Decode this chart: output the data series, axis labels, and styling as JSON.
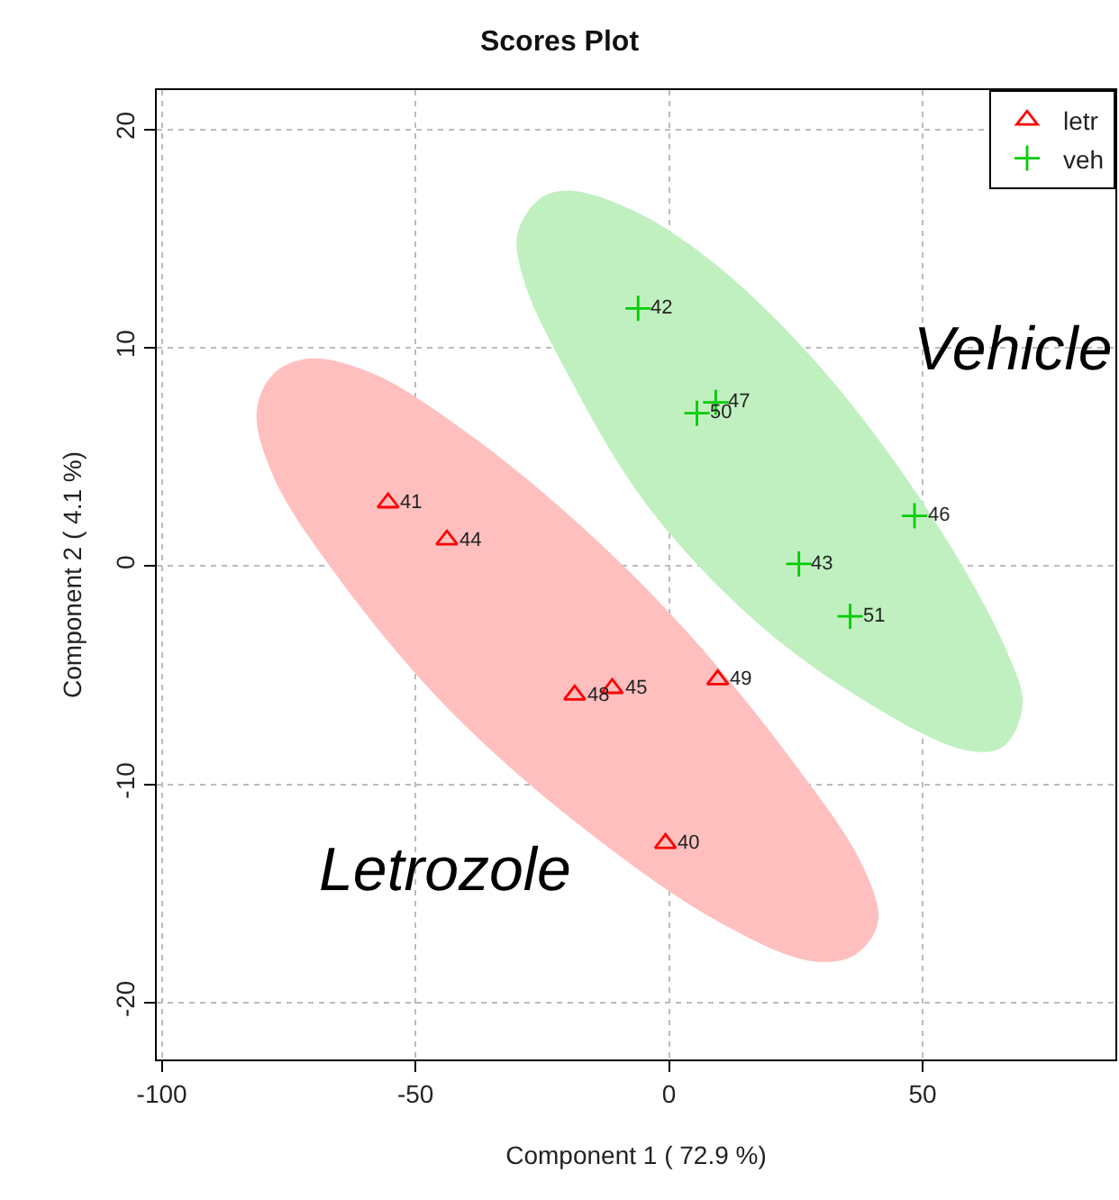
{
  "chart_data": {
    "type": "scatter",
    "title": "Scores Plot",
    "xlabel": "Component 1 ( 72.9 %)",
    "ylabel": "Component 2 ( 4.1 %)",
    "xlim": [
      -101,
      88
    ],
    "xticks": [
      -100,
      -50,
      0,
      50
    ],
    "ylim": [
      -22.6,
      21.8
    ],
    "yticks": [
      -20,
      -10,
      0,
      10,
      20
    ],
    "grid": true,
    "legend": "top right",
    "series": [
      {
        "type": "area",
        "color": "#ffbfbf",
        "x": [
          -81.3,
          -78.0,
          -71.0,
          -58.2,
          -39.8,
          -18.6,
          2.7,
          23.9,
          38.1,
          41.2,
          36.7,
          28.2,
          9.8,
          -18.6,
          -44.1,
          -65.3,
          -78.0,
          -81.3
        ],
        "values": [
          7.1,
          8.8,
          9.5,
          8.8,
          6.1,
          2.1,
          -2.8,
          -8.8,
          -13.7,
          -16.3,
          -17.8,
          -18.1,
          -16.3,
          -11.7,
          -6.4,
          -0.5,
          4.1,
          7.1
        ]
      },
      {
        "type": "area",
        "color": "#c0f0c0",
        "x": [
          -29.9,
          -25.6,
          -20.0,
          -7.2,
          9.8,
          31.0,
          52.3,
          66.4,
          69.7,
          65.7,
          57.9,
          38.1,
          16.9,
          -4.4,
          -20.0,
          -28.5,
          -29.9
        ],
        "values": [
          15.2,
          16.8,
          17.2,
          16.3,
          13.7,
          8.8,
          2.1,
          -3.8,
          -6.4,
          -8.3,
          -8.4,
          -6.1,
          -2.5,
          2.8,
          8.8,
          13.0,
          15.2
        ]
      },
      {
        "name": "letr",
        "color": "#ff0000",
        "marker": "triangle",
        "x": [
          -55.4,
          -43.8,
          -18.6,
          -11.2,
          9.6,
          -0.7
        ],
        "values": [
          2.9,
          1.2,
          -5.9,
          -5.6,
          -5.2,
          -12.7
        ]
      },
      {
        "name": "veh",
        "color": "#00cc00",
        "marker": "cross",
        "x": [
          -6.1,
          9.2,
          5.5,
          48.4,
          25.6,
          35.7
        ],
        "values": [
          11.8,
          7.5,
          7.0,
          2.3,
          0.1,
          -2.3
        ]
      }
    ],
    "annotations": [
      "Letrozole",
      "Vehicle",
      {
        "text": "41",
        "x": -55.4,
        "y": 2.9
      },
      {
        "text": "44",
        "x": -43.8,
        "y": 1.2
      },
      {
        "text": "48",
        "x": -18.6,
        "y": -5.9
      },
      {
        "text": "45",
        "x": -11.2,
        "y": -5.6
      },
      {
        "text": "49",
        "x": 9.6,
        "y": -5.2
      },
      {
        "text": "40",
        "x": -0.7,
        "y": -12.7
      },
      {
        "text": "42",
        "x": -6.1,
        "y": 11.8
      },
      {
        "text": "47",
        "x": 9.2,
        "y": 7.5
      },
      {
        "text": "50",
        "x": 5.5,
        "y": 7.0
      },
      {
        "text": "46",
        "x": 48.4,
        "y": 2.3
      },
      {
        "text": "43",
        "x": 25.6,
        "y": 0.1
      },
      {
        "text": "51",
        "x": 35.7,
        "y": -2.3
      }
    ]
  }
}
